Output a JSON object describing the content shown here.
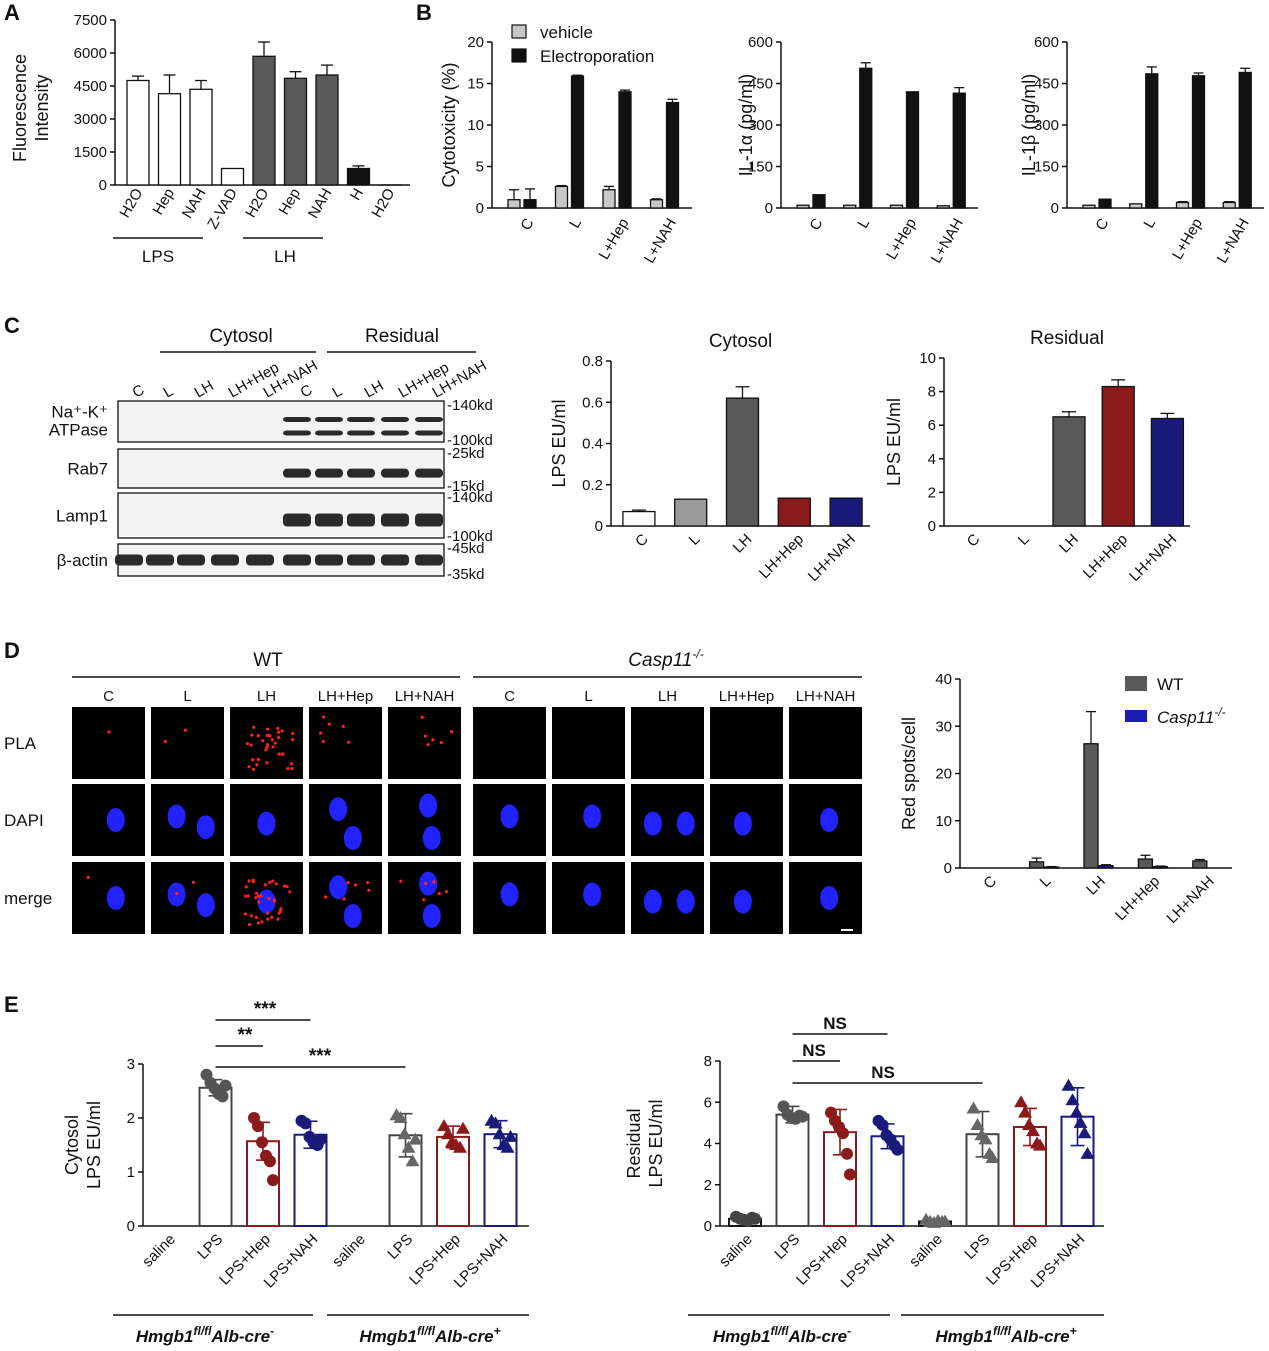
{
  "panel_labels": [
    "A",
    "B",
    "C",
    "D",
    "E"
  ],
  "colors": {
    "white_bar": "#ffffff",
    "dark_gray": "#595959",
    "black": "#111111",
    "light_gray": "#c8c8c8",
    "mid_gray": "#9a9a9a",
    "dark_red": "#8b1a1a",
    "navy": "#1a1a7a",
    "blue_legend": "#1a1ab4",
    "pla_red": "#ff2020",
    "dapi_blue": "#2222ff"
  },
  "panel_a": {
    "ylabel_lines": [
      "Fluorescence",
      "Intensity"
    ],
    "group_labels": [
      "LPS",
      "LH"
    ]
  },
  "panel_b": {
    "legend": [
      "vehicle",
      "Electroporation"
    ]
  },
  "panel_c": {
    "blot": {
      "group_labels": [
        "Cytosol",
        "Residual"
      ],
      "lanes": [
        "C",
        "L",
        "LH",
        "LH+Hep",
        "LH+NAH",
        "C",
        "L",
        "LH",
        "LH+Hep",
        "LH+NAH"
      ],
      "rows": [
        {
          "label_lines": [
            "Na⁺-K⁺",
            "ATPase"
          ],
          "markers": [
            "-140kd",
            "-100kd"
          ]
        },
        {
          "label_lines": [
            "Rab7"
          ],
          "markers": [
            "-25kd",
            "-15kd"
          ]
        },
        {
          "label_lines": [
            "Lamp1"
          ],
          "markers": [
            "-140kd",
            "-100kd"
          ]
        },
        {
          "label_lines": [
            "β-actin"
          ],
          "markers": [
            "-45kd",
            "-35kd"
          ]
        }
      ]
    }
  },
  "panel_d": {
    "groups": [
      "WT",
      "Casp11"
    ],
    "group_sup": "-/-",
    "columns": [
      "C",
      "L",
      "LH",
      "LH+Hep",
      "LH+NAH"
    ],
    "rows": [
      "PLA",
      "DAPI",
      "merge"
    ]
  },
  "panel_e": {
    "significance": {
      "left": [
        "***",
        "**",
        "***"
      ],
      "right": [
        "NS",
        "NS",
        "NS"
      ]
    },
    "genotypes": [
      {
        "base": "Hmgb1",
        "sup": "fl/fl",
        "alb": "Alb-cre",
        "sign": "-"
      },
      {
        "base": "Hmgb1",
        "sup": "fl/fl",
        "alb": "Alb-cre",
        "sign": "+"
      }
    ]
  },
  "chart_data": [
    {
      "id": "A",
      "type": "bar",
      "title": "",
      "ylabel": "Fluorescence Intensity",
      "categories": [
        "H2O",
        "Hep",
        "NAH",
        "Z-VAD",
        "H2O",
        "Hep",
        "NAH",
        "H",
        "H2O"
      ],
      "values": [
        4750,
        4150,
        4350,
        750,
        5850,
        4850,
        5000,
        750,
        0
      ],
      "errors": [
        200,
        850,
        400,
        0,
        650,
        300,
        450,
        120,
        0
      ],
      "ylim": [
        0,
        7500
      ],
      "yticks": [
        "0",
        "1500",
        "3000",
        "4500",
        "6000",
        "7500"
      ],
      "groups": [
        {
          "name": "LPS",
          "categories": [
            "H2O",
            "Hep",
            "NAH"
          ]
        },
        {
          "name": "LH",
          "categories": [
            "H2O",
            "Hep",
            "NAH"
          ]
        }
      ]
    },
    {
      "id": "B1",
      "type": "bar",
      "title": "",
      "ylabel": "Cytotoxicity (%)",
      "categories": [
        "C",
        "L",
        "L+Hep",
        "L+NAH"
      ],
      "series": [
        {
          "name": "vehicle",
          "values": [
            1.0,
            2.6,
            2.2,
            1.0
          ],
          "errors": [
            1.2,
            0.1,
            0.4,
            0.1
          ]
        },
        {
          "name": "Electroporation",
          "values": [
            1.0,
            15.9,
            14.0,
            12.7
          ],
          "errors": [
            1.3,
            0.1,
            0.2,
            0.4
          ]
        }
      ],
      "ylim": [
        0,
        20
      ],
      "yticks": [
        "0",
        "5",
        "10",
        "15",
        "20"
      ]
    },
    {
      "id": "B2",
      "type": "bar",
      "title": "",
      "ylabel": "IL-1α (pg/ml)",
      "categories": [
        "C",
        "L",
        "L+Hep",
        "L+NAH"
      ],
      "series": [
        {
          "name": "vehicle",
          "values": [
            10,
            10,
            10,
            8
          ],
          "errors": [
            0,
            0,
            0,
            0
          ]
        },
        {
          "name": "Electroporation",
          "values": [
            48,
            505,
            420,
            415
          ],
          "errors": [
            0,
            20,
            0,
            20
          ]
        }
      ],
      "ylim": [
        0,
        600
      ],
      "yticks": [
        "0",
        "150",
        "300",
        "450",
        "600"
      ]
    },
    {
      "id": "B3",
      "type": "bar",
      "title": "",
      "ylabel": "IL-1β (pg/ml)",
      "categories": [
        "C",
        "L",
        "L+Hep",
        "L+NAH"
      ],
      "series": [
        {
          "name": "vehicle",
          "values": [
            10,
            15,
            20,
            20
          ],
          "errors": [
            0,
            0,
            3,
            3
          ]
        },
        {
          "name": "Electroporation",
          "values": [
            32,
            485,
            478,
            490
          ],
          "errors": [
            0,
            25,
            10,
            15
          ]
        }
      ],
      "ylim": [
        0,
        600
      ],
      "yticks": [
        "0",
        "150",
        "300",
        "450",
        "600"
      ]
    },
    {
      "id": "C1",
      "type": "bar",
      "title": "Cytosol",
      "ylabel": "LPS EU/ml",
      "categories": [
        "C",
        "L",
        "LH",
        "LH+Hep",
        "LH+NAH"
      ],
      "values": [
        0.07,
        0.13,
        0.62,
        0.135,
        0.135
      ],
      "errors": [
        0.007,
        0,
        0.055,
        0,
        0
      ],
      "ylim": [
        0,
        0.8
      ],
      "yticks": [
        "0",
        "0.2",
        "0.4",
        "0.6",
        "0.8"
      ]
    },
    {
      "id": "C2",
      "type": "bar",
      "title": "Residual",
      "ylabel": "LPS EU/ml",
      "categories": [
        "C",
        "L",
        "LH",
        "LH+Hep",
        "LH+NAH"
      ],
      "values": [
        0,
        0,
        6.5,
        8.3,
        6.4
      ],
      "errors": [
        0,
        0,
        0.3,
        0.4,
        0.3
      ],
      "ylim": [
        0,
        10
      ],
      "yticks": [
        "0",
        "2",
        "4",
        "6",
        "8",
        "10"
      ]
    },
    {
      "id": "D",
      "type": "bar",
      "title": "",
      "ylabel": "Red spots/cell",
      "categories": [
        "C",
        "L",
        "LH",
        "LH+Hep",
        "LH+NAH"
      ],
      "series": [
        {
          "name": "WT",
          "values": [
            0,
            1.3,
            26.3,
            1.9,
            1.5
          ],
          "errors": [
            0,
            0.8,
            6.8,
            0.8,
            0.3
          ]
        },
        {
          "name": "Casp11-/-",
          "values": [
            0,
            0.2,
            0.5,
            0.3,
            0
          ],
          "errors": [
            0,
            0.1,
            0.2,
            0.1,
            0
          ]
        }
      ],
      "ylim": [
        0,
        40
      ],
      "yticks": [
        "0",
        "10",
        "20",
        "30",
        "40"
      ],
      "legend": "top-right"
    },
    {
      "id": "E1",
      "type": "bar",
      "title": "",
      "ylabel": "Cytosol LPS EU/ml",
      "categories": [
        "saline",
        "LPS",
        "LPS+Hep",
        "LPS+NAH",
        "saline",
        "LPS",
        "LPS+Hep",
        "LPS+NAH"
      ],
      "values": [
        0,
        2.56,
        1.57,
        1.69,
        0,
        1.68,
        1.65,
        1.7
      ],
      "errors": [
        0,
        0.15,
        0.35,
        0.25,
        0,
        0.4,
        0.2,
        0.25
      ],
      "points": [
        [],
        [
          2.8,
          2.65,
          2.55,
          2.45,
          2.4,
          2.6
        ],
        [
          2.0,
          1.85,
          1.55,
          1.3,
          1.2,
          0.85
        ],
        [
          1.95,
          1.9,
          1.65,
          1.55,
          1.5,
          1.6
        ],
        [],
        [
          2.05,
          2.0,
          1.7,
          1.45,
          1.2,
          1.6
        ],
        [
          1.85,
          1.7,
          1.55,
          1.5,
          1.45,
          1.8
        ],
        [
          1.95,
          1.9,
          1.7,
          1.5,
          1.45,
          1.65
        ]
      ],
      "ylim": [
        0,
        3
      ],
      "yticks": [
        "0",
        "1",
        "2",
        "3"
      ]
    },
    {
      "id": "E2",
      "type": "bar",
      "title": "",
      "ylabel": "Residual LPS EU/ml",
      "categories": [
        "saline",
        "LPS",
        "LPS+Hep",
        "LPS+NAH",
        "saline",
        "LPS",
        "LPS+Hep",
        "LPS+NAH"
      ],
      "values": [
        0.35,
        5.4,
        4.55,
        4.35,
        0.22,
        4.45,
        4.8,
        5.3
      ],
      "errors": [
        0.1,
        0.4,
        1.1,
        0.6,
        0.1,
        1.1,
        0.9,
        1.4
      ],
      "points": [
        [
          0.45,
          0.35,
          0.3,
          0.25,
          0.4,
          0.35
        ],
        [
          5.8,
          5.4,
          5.25,
          5.2,
          5.35,
          5.3
        ],
        [
          5.5,
          5.1,
          4.8,
          4.5,
          3.5,
          2.5
        ],
        [
          5.1,
          4.9,
          4.4,
          4.2,
          3.9,
          3.7
        ],
        [
          0.3,
          0.2,
          0.15,
          0.25,
          0.2,
          0.22
        ],
        [
          5.7,
          4.9,
          4.4,
          4.2,
          3.5,
          3.3
        ],
        [
          6.0,
          5.5,
          4.9,
          4.6,
          4.0,
          3.9
        ],
        [
          6.8,
          6.1,
          5.5,
          5.0,
          4.5,
          3.5
        ]
      ],
      "ylim": [
        0,
        8
      ],
      "yticks": [
        "0",
        "2",
        "4",
        "6",
        "8"
      ]
    }
  ]
}
